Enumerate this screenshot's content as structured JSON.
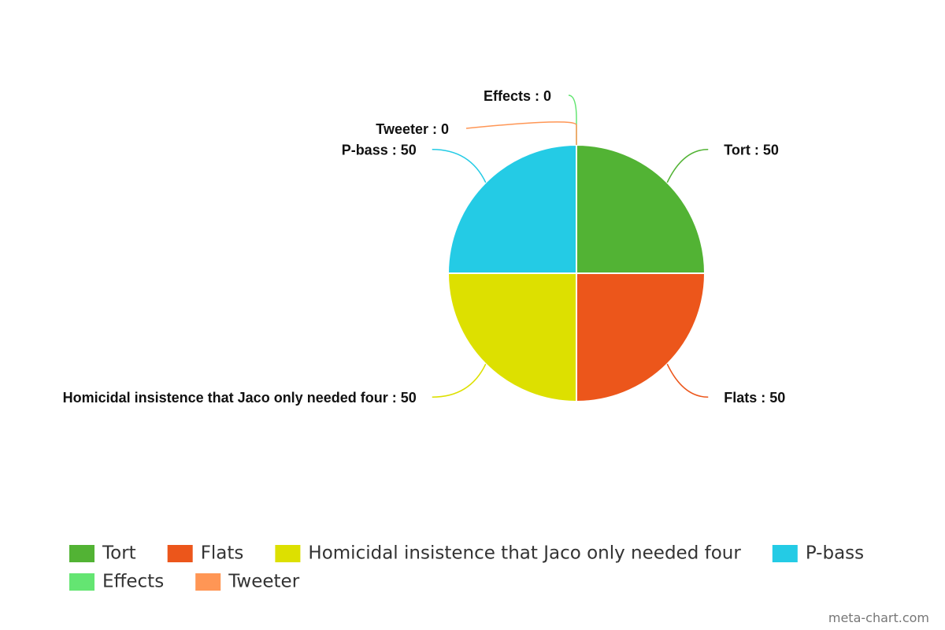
{
  "chart_data": {
    "type": "pie",
    "categories": [
      "Tort",
      "Flats",
      "Homicidal insistence that Jaco only needed four",
      "P-bass",
      "Effects",
      "Tweeter"
    ],
    "values": [
      50,
      50,
      50,
      50,
      0,
      0
    ],
    "value_labels": [
      "Tort : 50",
      "Flats : 50",
      "Homicidal insistence that Jaco only needed four : 50",
      "P-bass : 50",
      "Effects : 0",
      "Tweeter : 0"
    ],
    "colors": [
      "#52b334",
      "#ec561b",
      "#dde000",
      "#24cbe5",
      "#64e572",
      "#ff9655"
    ],
    "legend": "bottom",
    "watermark": "meta-chart.com"
  }
}
